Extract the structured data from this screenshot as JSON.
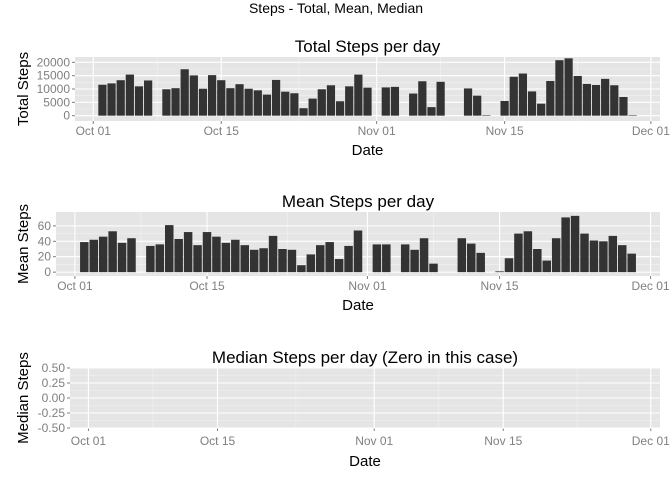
{
  "figure": {
    "title": "Steps - Total, Mean, Median"
  },
  "chart_data": [
    {
      "type": "bar",
      "title": "Total Steps per day",
      "xlabel": "Date",
      "ylabel": "Total Steps",
      "grid": true,
      "xlim": [
        "2012-09-29",
        "2012-12-02"
      ],
      "xticks": [
        {
          "date": "2012-10-01",
          "label": "Oct 01"
        },
        {
          "date": "2012-10-15",
          "label": "Oct 15"
        },
        {
          "date": "2012-11-01",
          "label": "Nov 01"
        },
        {
          "date": "2012-11-15",
          "label": "Nov 15"
        },
        {
          "date": "2012-12-01",
          "label": "Dec 01"
        }
      ],
      "ylim": [
        -2000,
        22000
      ],
      "yticks": [
        {
          "value": 0,
          "label": "0"
        },
        {
          "value": 5000,
          "label": "5000"
        },
        {
          "value": 10000,
          "label": "10000"
        },
        {
          "value": 15000,
          "label": "15000"
        },
        {
          "value": 20000,
          "label": "20000"
        }
      ],
      "x": [
        "2012-10-02",
        "2012-10-03",
        "2012-10-04",
        "2012-10-05",
        "2012-10-06",
        "2012-10-07",
        "2012-10-09",
        "2012-10-10",
        "2012-10-11",
        "2012-10-12",
        "2012-10-13",
        "2012-10-14",
        "2012-10-15",
        "2012-10-16",
        "2012-10-17",
        "2012-10-18",
        "2012-10-19",
        "2012-10-20",
        "2012-10-21",
        "2012-10-22",
        "2012-10-23",
        "2012-10-24",
        "2012-10-25",
        "2012-10-26",
        "2012-10-27",
        "2012-10-28",
        "2012-10-29",
        "2012-10-30",
        "2012-10-31",
        "2012-11-02",
        "2012-11-03",
        "2012-11-05",
        "2012-11-06",
        "2012-11-07",
        "2012-11-08",
        "2012-11-11",
        "2012-11-12",
        "2012-11-13",
        "2012-11-15",
        "2012-11-16",
        "2012-11-17",
        "2012-11-18",
        "2012-11-19",
        "2012-11-20",
        "2012-11-21",
        "2012-11-22",
        "2012-11-23",
        "2012-11-24",
        "2012-11-25",
        "2012-11-26",
        "2012-11-27",
        "2012-11-28",
        "2012-11-29"
      ],
      "values": [
        11600,
        12100,
        13300,
        15400,
        11000,
        13200,
        9900,
        10300,
        17400,
        15100,
        10100,
        15200,
        13300,
        10300,
        11800,
        10100,
        9500,
        7900,
        13400,
        9000,
        8400,
        2800,
        6400,
        9900,
        11400,
        5400,
        11000,
        15400,
        10500,
        10600,
        10800,
        8300,
        12900,
        3200,
        12700,
        10200,
        7500,
        200,
        5500,
        14600,
        15800,
        9100,
        4500,
        13000,
        20800,
        21500,
        14900,
        11900,
        11500,
        13800,
        11400,
        7000,
        100
      ]
    },
    {
      "type": "bar",
      "title": "Mean Steps per day",
      "xlabel": "Date",
      "ylabel": "Mean Steps",
      "grid": true,
      "xlim": [
        "2012-09-29",
        "2012-12-02"
      ],
      "xticks": [
        {
          "date": "2012-10-01",
          "label": "Oct 01"
        },
        {
          "date": "2012-10-15",
          "label": "Oct 15"
        },
        {
          "date": "2012-11-01",
          "label": "Nov 01"
        },
        {
          "date": "2012-11-15",
          "label": "Nov 15"
        },
        {
          "date": "2012-12-01",
          "label": "Dec 01"
        }
      ],
      "ylim": [
        -5,
        78
      ],
      "yticks": [
        {
          "value": 0,
          "label": "0"
        },
        {
          "value": 20,
          "label": "20"
        },
        {
          "value": 40,
          "label": "40"
        },
        {
          "value": 60,
          "label": "60"
        }
      ],
      "x": [
        "2012-10-02",
        "2012-10-03",
        "2012-10-04",
        "2012-10-05",
        "2012-10-06",
        "2012-10-07",
        "2012-10-09",
        "2012-10-10",
        "2012-10-11",
        "2012-10-12",
        "2012-10-13",
        "2012-10-14",
        "2012-10-15",
        "2012-10-16",
        "2012-10-17",
        "2012-10-18",
        "2012-10-19",
        "2012-10-20",
        "2012-10-21",
        "2012-10-22",
        "2012-10-23",
        "2012-10-24",
        "2012-10-25",
        "2012-10-26",
        "2012-10-27",
        "2012-10-28",
        "2012-10-29",
        "2012-10-30",
        "2012-10-31",
        "2012-11-02",
        "2012-11-03",
        "2012-11-05",
        "2012-11-06",
        "2012-11-07",
        "2012-11-08",
        "2012-11-11",
        "2012-11-12",
        "2012-11-13",
        "2012-11-15",
        "2012-11-16",
        "2012-11-17",
        "2012-11-18",
        "2012-11-19",
        "2012-11-20",
        "2012-11-21",
        "2012-11-22",
        "2012-11-23",
        "2012-11-24",
        "2012-11-25",
        "2012-11-26",
        "2012-11-27",
        "2012-11-28",
        "2012-11-29"
      ],
      "values": [
        39,
        42,
        46,
        53,
        38,
        44,
        34,
        36,
        61,
        43,
        52,
        35,
        52,
        46,
        38,
        42,
        35,
        29,
        31,
        47,
        30,
        29,
        9,
        23,
        35,
        39,
        17,
        34,
        54,
        36,
        36,
        36,
        29,
        44,
        11,
        44,
        37,
        25,
        1,
        18,
        50,
        53,
        30,
        15,
        44,
        71,
        73,
        50,
        41,
        40,
        47,
        35,
        24
      ]
    },
    {
      "type": "bar",
      "title": "Median Steps per day (Zero in this case)",
      "xlabel": "Date",
      "ylabel": "Median Steps",
      "grid": true,
      "xlim": [
        "2012-09-29",
        "2012-12-02"
      ],
      "xticks": [
        {
          "date": "2012-10-01",
          "label": "Oct 01"
        },
        {
          "date": "2012-10-15",
          "label": "Oct 15"
        },
        {
          "date": "2012-11-01",
          "label": "Nov 01"
        },
        {
          "date": "2012-11-15",
          "label": "Nov 15"
        },
        {
          "date": "2012-12-01",
          "label": "Dec 01"
        }
      ],
      "ylim": [
        -0.5,
        0.5
      ],
      "yticks": [
        {
          "value": 0.5,
          "label": "0.50"
        },
        {
          "value": 0.25,
          "label": "0.25"
        },
        {
          "value": 0,
          "label": "0.00"
        },
        {
          "value": -0.25,
          "label": "-0.25"
        },
        {
          "value": -0.5,
          "label": "-0.50"
        }
      ],
      "x": [],
      "values": []
    }
  ],
  "colors": {
    "panel": "#e5e5e5",
    "grid_major": "#ffffff",
    "grid_minor": "#f2f2f2",
    "bar": "#333333",
    "tick_text": "#7f7f7f"
  }
}
